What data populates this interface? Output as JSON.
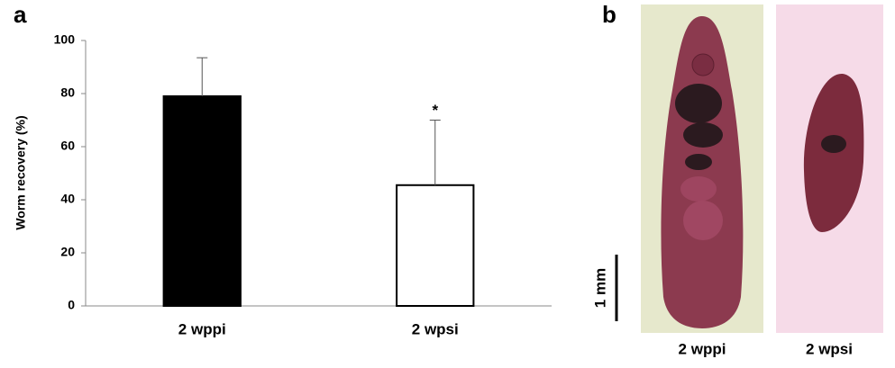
{
  "chart_data": {
    "type": "bar",
    "panel_label": "a",
    "y_label": "Worm recovery (%)",
    "categories": [
      "2 wppi",
      "2 wpsi"
    ],
    "values": [
      79,
      45.5
    ],
    "errors": [
      14.5,
      24.5
    ],
    "colors": [
      "#000000",
      "#ffffff"
    ],
    "significance_labels": [
      null,
      "*"
    ],
    "ylim": [
      0,
      100
    ],
    "yticks": [
      0,
      20,
      40,
      60,
      80,
      100
    ],
    "grid": false
  },
  "panel_b": {
    "label": "b",
    "scale_bar": "1 mm",
    "images": [
      {
        "caption": "2 wppi"
      },
      {
        "caption": "2 wpsi"
      }
    ]
  }
}
